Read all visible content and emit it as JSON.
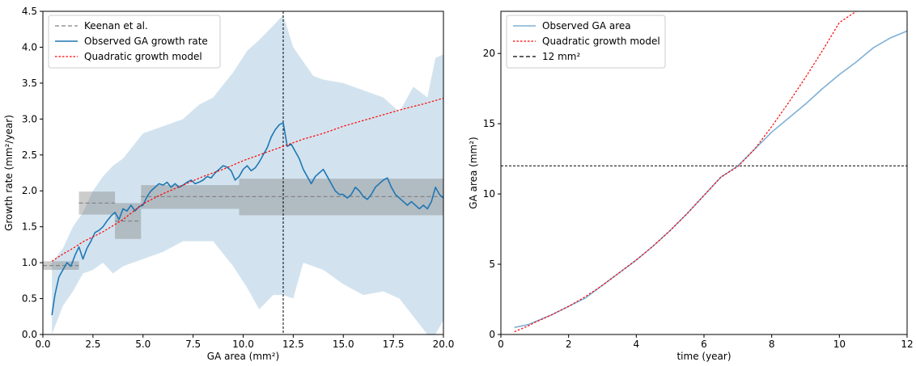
{
  "chart_data": [
    {
      "type": "line",
      "title": "",
      "xlabel": "GA area (mm²)",
      "ylabel": "Growth rate (mm²/year)",
      "xlim": [
        0,
        20
      ],
      "ylim": [
        0,
        4.5
      ],
      "xticks": [
        0.0,
        2.5,
        5.0,
        7.5,
        10.0,
        12.5,
        15.0,
        17.5,
        20.0
      ],
      "xtick_labels": [
        "0.0",
        "2.5",
        "5.0",
        "7.5",
        "10.0",
        "12.5",
        "15.0",
        "17.5",
        "20.0"
      ],
      "yticks": [
        0.0,
        0.5,
        1.0,
        1.5,
        2.0,
        2.5,
        3.0,
        3.5,
        4.0,
        4.5
      ],
      "ytick_labels": [
        "0.0",
        "0.5",
        "1.0",
        "1.5",
        "2.0",
        "2.5",
        "3.0",
        "3.5",
        "4.0",
        "4.5"
      ],
      "grid": false,
      "legend": {
        "placement": "top-left",
        "entries": [
          {
            "label": "Keenan et al.",
            "color": "#808080",
            "style": "dashed"
          },
          {
            "label": "Observed GA growth rate",
            "color": "#1f77b4",
            "style": "solid"
          },
          {
            "label": "Quadratic growth model",
            "color": "#ff0000",
            "style": "dotted"
          }
        ]
      },
      "vline": {
        "x": 12,
        "color": "#000000",
        "style": "dashed"
      },
      "keenan_boxes": [
        {
          "x0": 0.0,
          "x1": 1.8,
          "mean": 0.96,
          "low": 0.9,
          "high": 1.02
        },
        {
          "x0": 1.8,
          "x1": 3.6,
          "mean": 1.83,
          "low": 1.67,
          "high": 1.99
        },
        {
          "x0": 3.6,
          "x1": 4.9,
          "mean": 1.58,
          "low": 1.33,
          "high": 1.83
        },
        {
          "x0": 4.9,
          "x1": 9.8,
          "mean": 1.92,
          "low": 1.75,
          "high": 2.08
        },
        {
          "x0": 9.8,
          "x1": 20.0,
          "mean": 1.92,
          "low": 1.66,
          "high": 2.17
        }
      ],
      "series": [
        {
          "name": "Observed GA growth rate",
          "color": "#1f77b4",
          "x": [
            0.45,
            0.6,
            0.8,
            1.0,
            1.2,
            1.4,
            1.6,
            1.8,
            2.0,
            2.2,
            2.4,
            2.6,
            2.8,
            3.0,
            3.2,
            3.4,
            3.6,
            3.8,
            4.0,
            4.2,
            4.4,
            4.6,
            4.8,
            5.0,
            5.2,
            5.4,
            5.6,
            5.8,
            6.0,
            6.2,
            6.4,
            6.6,
            6.8,
            7.0,
            7.2,
            7.4,
            7.6,
            7.8,
            8.0,
            8.2,
            8.4,
            8.6,
            8.8,
            9.0,
            9.2,
            9.4,
            9.6,
            9.8,
            10.0,
            10.2,
            10.4,
            10.6,
            10.8,
            11.0,
            11.2,
            11.4,
            11.6,
            11.8,
            12.0,
            12.2,
            12.4,
            12.6,
            12.8,
            13.0,
            13.2,
            13.4,
            13.6,
            13.8,
            14.0,
            14.2,
            14.4,
            14.6,
            14.8,
            15.0,
            15.2,
            15.4,
            15.6,
            15.8,
            16.0,
            16.2,
            16.4,
            16.6,
            16.8,
            17.0,
            17.2,
            17.4,
            17.6,
            17.8,
            18.0,
            18.2,
            18.4,
            18.6,
            18.8,
            19.0,
            19.2,
            19.4,
            19.6,
            19.8,
            20.0
          ],
          "values": [
            0.27,
            0.55,
            0.8,
            0.9,
            1.0,
            0.95,
            1.1,
            1.22,
            1.05,
            1.2,
            1.3,
            1.42,
            1.45,
            1.5,
            1.58,
            1.65,
            1.7,
            1.6,
            1.75,
            1.72,
            1.8,
            1.72,
            1.78,
            1.8,
            1.92,
            2.0,
            2.05,
            2.1,
            2.08,
            2.12,
            2.05,
            2.1,
            2.05,
            2.08,
            2.12,
            2.15,
            2.1,
            2.12,
            2.15,
            2.2,
            2.18,
            2.25,
            2.3,
            2.35,
            2.33,
            2.28,
            2.15,
            2.2,
            2.3,
            2.35,
            2.28,
            2.32,
            2.4,
            2.5,
            2.6,
            2.75,
            2.85,
            2.92,
            2.95,
            2.62,
            2.65,
            2.55,
            2.45,
            2.3,
            2.2,
            2.1,
            2.2,
            2.25,
            2.3,
            2.2,
            2.1,
            2.0,
            1.95,
            1.95,
            1.9,
            1.95,
            2.05,
            2.0,
            1.92,
            1.88,
            1.95,
            2.05,
            2.1,
            2.15,
            2.18,
            2.05,
            1.95,
            1.9,
            1.85,
            1.8,
            1.85,
            1.8,
            1.75,
            1.8,
            1.75,
            1.85,
            2.05,
            1.95,
            1.9
          ]
        },
        {
          "name": "Quadratic growth model",
          "color": "#ff0000",
          "x": [
            0.45,
            1.0,
            1.5,
            2.0,
            3.0,
            4.0,
            5.0,
            6.0,
            7.0,
            8.0,
            9.0,
            10.0,
            11.0,
            12.0,
            13.0,
            14.0,
            15.0,
            16.0,
            17.0,
            18.0,
            19.0,
            20.0
          ],
          "values": [
            1.02,
            1.12,
            1.2,
            1.29,
            1.43,
            1.6,
            1.82,
            1.96,
            2.08,
            2.2,
            2.3,
            2.42,
            2.52,
            2.62,
            2.72,
            2.8,
            2.9,
            2.98,
            3.06,
            3.14,
            3.21,
            3.29
          ]
        }
      ],
      "confidence_band": {
        "color": "#a6c8e0",
        "x": [
          0.45,
          1.0,
          1.5,
          2.0,
          2.5,
          3.0,
          3.5,
          4.0,
          5.0,
          6.0,
          7.0,
          7.8,
          8.5,
          9.5,
          10.2,
          10.8,
          11.5,
          12.0,
          12.5,
          13.0,
          13.5,
          14.0,
          15.0,
          16.0,
          17.0,
          17.8,
          18.5,
          19.2,
          19.6,
          20.0
        ],
        "upper": [
          1.0,
          1.2,
          1.5,
          1.7,
          2.0,
          2.2,
          2.35,
          2.45,
          2.8,
          2.9,
          3.0,
          3.2,
          3.3,
          3.65,
          3.95,
          4.1,
          4.3,
          4.45,
          4.0,
          3.8,
          3.6,
          3.55,
          3.5,
          3.4,
          3.3,
          3.1,
          3.45,
          3.3,
          3.85,
          3.9
        ],
        "lower": [
          0.0,
          0.4,
          0.6,
          0.85,
          0.9,
          1.0,
          0.85,
          0.95,
          1.05,
          1.15,
          1.3,
          1.3,
          1.3,
          0.95,
          0.65,
          0.35,
          0.55,
          0.55,
          0.5,
          1.0,
          0.95,
          0.9,
          0.7,
          0.55,
          0.6,
          0.5,
          0.25,
          0.0,
          0.0,
          0.2
        ]
      }
    },
    {
      "type": "line",
      "title": "",
      "xlabel": "time (year)",
      "ylabel": "GA area (mm²)",
      "xlim": [
        0,
        12
      ],
      "ylim": [
        0,
        23
      ],
      "xticks": [
        0,
        2,
        4,
        6,
        8,
        10,
        12
      ],
      "xtick_labels": [
        "0",
        "2",
        "4",
        "6",
        "8",
        "10",
        "12"
      ],
      "yticks": [
        0,
        5,
        10,
        15,
        20
      ],
      "ytick_labels": [
        "0",
        "5",
        "10",
        "15",
        "20"
      ],
      "grid": false,
      "legend": {
        "placement": "top-left",
        "entries": [
          {
            "label": "Observed GA area",
            "color": "#7fb0d6",
            "style": "solid"
          },
          {
            "label": "Quadratic growth model",
            "color": "#ff0000",
            "style": "dotted"
          },
          {
            "label": "12 mm²",
            "color": "#000000",
            "style": "dashed"
          }
        ]
      },
      "hline": {
        "y": 12,
        "color": "#000000",
        "style": "dashed"
      },
      "series": [
        {
          "name": "Observed GA area",
          "color": "#7fb0d6",
          "x": [
            0.4,
            0.8,
            1.0,
            1.5,
            2.0,
            2.5,
            3.0,
            3.5,
            4.0,
            4.5,
            5.0,
            5.5,
            6.0,
            6.5,
            7.0,
            7.5,
            8.0,
            8.5,
            9.0,
            9.5,
            10.0,
            10.5,
            11.0,
            11.5,
            12.0
          ],
          "values": [
            0.5,
            0.7,
            0.9,
            1.4,
            2.0,
            2.6,
            3.5,
            4.4,
            5.3,
            6.3,
            7.4,
            8.6,
            9.9,
            11.2,
            12.0,
            13.2,
            14.4,
            15.4,
            16.4,
            17.5,
            18.5,
            19.4,
            20.4,
            21.1,
            21.6
          ]
        },
        {
          "name": "Quadratic growth model",
          "color": "#ff0000",
          "x": [
            0.4,
            0.8,
            1.0,
            1.5,
            2.0,
            2.5,
            3.0,
            3.5,
            4.0,
            4.5,
            5.0,
            5.5,
            6.0,
            6.5,
            7.0,
            7.5,
            8.0,
            8.5,
            9.0,
            9.5,
            10.0,
            10.5
          ],
          "values": [
            0.2,
            0.6,
            0.85,
            1.4,
            2.0,
            2.7,
            3.5,
            4.4,
            5.3,
            6.3,
            7.4,
            8.6,
            9.9,
            11.2,
            11.95,
            13.2,
            14.8,
            16.5,
            18.3,
            20.2,
            22.2,
            23.0
          ]
        }
      ]
    }
  ]
}
